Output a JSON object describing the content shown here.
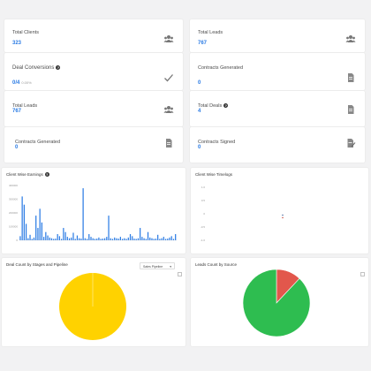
{
  "stats": [
    {
      "title": "Total Clients",
      "value": "323",
      "icon": "users-icon"
    },
    {
      "title": "Total Leads",
      "value": "767",
      "icon": "users-icon"
    },
    {
      "title": "Deal Conversions",
      "value": "0/4",
      "sub": "0.00%",
      "icon": "check-icon",
      "help": "?"
    },
    {
      "title": "Contracts Generated",
      "value": "0",
      "icon": "document-icon"
    },
    {
      "title": "Total Leads",
      "value": "767",
      "icon": "users-icon"
    },
    {
      "title": "Total Deals",
      "value": "4",
      "icon": "document-icon",
      "help": "?"
    },
    {
      "title": "Contracts Generated",
      "value": "0",
      "icon": "document-icon"
    },
    {
      "title": "Contracts Signed",
      "value": "0",
      "icon": "signed-document-icon"
    }
  ],
  "charts": {
    "earnings_title": "Client Wise Earnings",
    "earnings_help": "?",
    "timelogs_title": "Client Wise Timelogs",
    "deals_title": "Deal Count by Stages and Pipeline",
    "pipeline_select": "Sales Pipeline",
    "leads_title": "Leads Count by Source"
  },
  "chart_data": [
    {
      "type": "bar",
      "title": "Client Wise Earnings",
      "ylim": [
        0,
        400000
      ],
      "yticks": [
        "400000",
        "300000",
        "200000",
        "100000",
        "0"
      ],
      "values": [
        30000,
        320000,
        260000,
        120000,
        15000,
        40000,
        10000,
        20000,
        180000,
        90000,
        230000,
        130000,
        25000,
        60000,
        35000,
        20000,
        15000,
        10000,
        12000,
        45000,
        30000,
        10000,
        90000,
        60000,
        25000,
        15000,
        20000,
        55000,
        10000,
        35000,
        15000,
        12000,
        380000,
        15000,
        10000,
        45000,
        25000,
        15000,
        10000,
        12000,
        20000,
        10000,
        12000,
        15000,
        25000,
        180000,
        15000,
        10000,
        20000,
        15000,
        12000,
        25000,
        10000,
        15000,
        10000,
        20000,
        45000,
        30000,
        12000,
        10000,
        15000,
        90000,
        25000,
        15000,
        10000,
        60000,
        20000,
        15000,
        10000,
        12000,
        40000,
        10000,
        15000,
        25000,
        10000,
        12000,
        20000,
        30000,
        10000,
        45000
      ]
    },
    {
      "type": "scatter",
      "title": "Client Wise Timelogs",
      "yticks": [
        "1.0",
        "0.5",
        "0",
        "-0.5",
        "-1.0"
      ],
      "ylim": [
        -1,
        1
      ],
      "points": [
        {
          "y": -0.05
        }
      ]
    },
    {
      "type": "pie",
      "title": "Deal Count by Stages and Pipeline",
      "slices": [
        {
          "value": 100,
          "color": "#ffd200"
        }
      ]
    },
    {
      "type": "pie",
      "title": "Leads Count by Source",
      "slices": [
        {
          "value": 88,
          "color": "#2ebd50"
        },
        {
          "value": 12,
          "color": "#e2574c"
        }
      ]
    }
  ]
}
